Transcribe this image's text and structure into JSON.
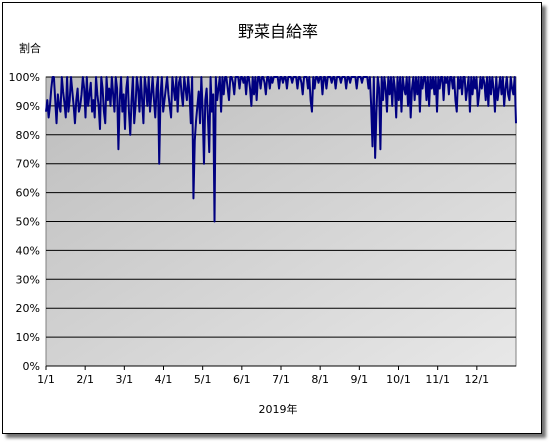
{
  "chart_data": {
    "type": "line",
    "title": "野菜自給率",
    "ylabel": "割合",
    "xlabel": "2019年",
    "ylim": [
      0,
      100
    ],
    "yticks": [
      "0%",
      "10%",
      "20%",
      "30%",
      "40%",
      "50%",
      "60%",
      "70%",
      "80%",
      "90%",
      "100%"
    ],
    "xticks": [
      "1/1",
      "2/1",
      "3/1",
      "4/1",
      "5/1",
      "6/1",
      "7/1",
      "8/1",
      "9/1",
      "10/1",
      "11/1",
      "12/1"
    ],
    "grid": true,
    "legend": "none",
    "colors": {
      "line": "#000080",
      "plot_bg": "#c0c0c0"
    },
    "series": [
      {
        "values": [
          88,
          92,
          86,
          90,
          96,
          100,
          100,
          92,
          84,
          94,
          90,
          88,
          100,
          95,
          91,
          86,
          100,
          88,
          92,
          100,
          95,
          90,
          84,
          92,
          96,
          88,
          90,
          94,
          100,
          96,
          86,
          100,
          90,
          94,
          98,
          88,
          92,
          86,
          100,
          94,
          90,
          82,
          100,
          96,
          88,
          84,
          100,
          92,
          96,
          90,
          100,
          94,
          88,
          100,
          96,
          75,
          92,
          100,
          88,
          94,
          82,
          96,
          100,
          88,
          80,
          92,
          100,
          84,
          90,
          100,
          96,
          88,
          100,
          92,
          84,
          100,
          96,
          90,
          100,
          88,
          94,
          100,
          92,
          86,
          96,
          100,
          70,
          94,
          100,
          88,
          92,
          96,
          100,
          94,
          90,
          86,
          100,
          96,
          92,
          100,
          88,
          98,
          100,
          94,
          90,
          100,
          96,
          92,
          100,
          94,
          84,
          100,
          58,
          78,
          85,
          90,
          95,
          84,
          100,
          88,
          70,
          92,
          96,
          86,
          74,
          100,
          88,
          94,
          50,
          100,
          92,
          96,
          100,
          88,
          100,
          94,
          100,
          100,
          96,
          92,
          100,
          100,
          98,
          94,
          100,
          100,
          100,
          96,
          100,
          100,
          98,
          100,
          94,
          100,
          100,
          96,
          90,
          100,
          94,
          100,
          92,
          100,
          100,
          96,
          100,
          100,
          98,
          94,
          100,
          100,
          96,
          100,
          98,
          100,
          100,
          100,
          100,
          96,
          100,
          100,
          98,
          100,
          100,
          96,
          100,
          100,
          100,
          98,
          100,
          100,
          100,
          96,
          100,
          100,
          98,
          94,
          100,
          100,
          100,
          96,
          100,
          92,
          88,
          100,
          96,
          100,
          100,
          98,
          100,
          100,
          94,
          100,
          100,
          96,
          100,
          100,
          100,
          98,
          100,
          100,
          96,
          100,
          100,
          100,
          98,
          100,
          100,
          100,
          96,
          100,
          100,
          98,
          100,
          100,
          100,
          100,
          96,
          100,
          100,
          100,
          98,
          100,
          100,
          100,
          100,
          96,
          100,
          90,
          76,
          100,
          72,
          88,
          100,
          96,
          75,
          100,
          92,
          100,
          96,
          88,
          100,
          94,
          100,
          90,
          100,
          96,
          86,
          100,
          92,
          100,
          88,
          100,
          96,
          94,
          100,
          90,
          100,
          86,
          96,
          100,
          92,
          100,
          94,
          100,
          88,
          100,
          96,
          100,
          100,
          92,
          100,
          90,
          100,
          96,
          100,
          94,
          100,
          88,
          100,
          96,
          100,
          100,
          92,
          100,
          98,
          100,
          94,
          100,
          100,
          96,
          100,
          92,
          88,
          100,
          96,
          100,
          94,
          100,
          100,
          92,
          96,
          100,
          88,
          100,
          94,
          100,
          96,
          100,
          90,
          94,
          100,
          96,
          100,
          98,
          92,
          100,
          90,
          100,
          94,
          100,
          96,
          88,
          100,
          92,
          96,
          100,
          94,
          100,
          90,
          96,
          100,
          94,
          92,
          100,
          96,
          94,
          100,
          84
        ]
      }
    ]
  }
}
